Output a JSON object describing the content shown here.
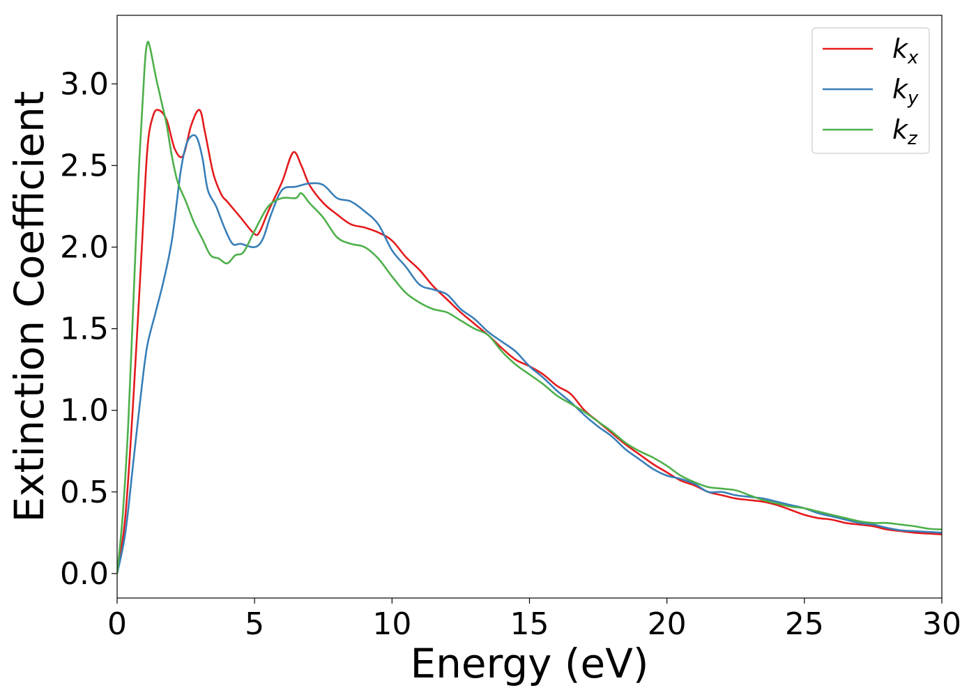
{
  "chart_data": {
    "type": "line",
    "title": "",
    "xlabel": "Energy (eV)",
    "ylabel": "Extinction Coefficient",
    "xlim": [
      0,
      30
    ],
    "ylim": [
      -0.15,
      3.42
    ],
    "xticks": [
      0,
      5,
      10,
      15,
      20,
      25,
      30
    ],
    "xtick_labels": [
      "0",
      "5",
      "10",
      "15",
      "20",
      "25",
      "30"
    ],
    "yticks": [
      0.0,
      0.5,
      1.0,
      1.5,
      2.0,
      2.5,
      3.0
    ],
    "ytick_labels": [
      "0.0",
      "0.5",
      "1.0",
      "1.5",
      "2.0",
      "2.5",
      "3.0"
    ],
    "grid": false,
    "legend": {
      "position": "top-right"
    },
    "series": [
      {
        "name": "k",
        "subscript": "x",
        "color": "#e41a1c",
        "x": [
          0,
          0.3,
          0.6,
          0.9,
          1.1,
          1.3,
          1.5,
          1.8,
          2.1,
          2.4,
          2.7,
          3.0,
          3.2,
          3.5,
          3.8,
          4.0,
          4.5,
          5.0,
          5.2,
          5.5,
          6.0,
          6.4,
          6.7,
          7.0,
          7.5,
          8.0,
          8.5,
          9.0,
          9.5,
          10.0,
          10.5,
          11.0,
          11.5,
          12.0,
          12.5,
          13.0,
          13.5,
          14.0,
          14.5,
          15.0,
          15.5,
          16.0,
          16.5,
          17.0,
          17.5,
          18.0,
          18.5,
          19.0,
          19.5,
          20.0,
          20.5,
          21.0,
          21.5,
          22.0,
          22.5,
          23.0,
          23.5,
          24.0,
          24.5,
          25.0,
          25.5,
          26.0,
          26.5,
          27.0,
          27.5,
          28.0,
          28.5,
          29.0,
          29.5,
          30.0
        ],
        "y": [
          0.0,
          0.35,
          1.1,
          2.0,
          2.6,
          2.8,
          2.84,
          2.78,
          2.6,
          2.56,
          2.75,
          2.84,
          2.7,
          2.45,
          2.32,
          2.28,
          2.18,
          2.08,
          2.1,
          2.22,
          2.4,
          2.58,
          2.5,
          2.38,
          2.27,
          2.2,
          2.14,
          2.12,
          2.09,
          2.04,
          1.94,
          1.86,
          1.76,
          1.68,
          1.6,
          1.53,
          1.46,
          1.38,
          1.31,
          1.27,
          1.22,
          1.15,
          1.1,
          1.0,
          0.93,
          0.86,
          0.79,
          0.73,
          0.67,
          0.62,
          0.57,
          0.54,
          0.5,
          0.48,
          0.46,
          0.45,
          0.44,
          0.42,
          0.39,
          0.36,
          0.34,
          0.33,
          0.31,
          0.3,
          0.29,
          0.27,
          0.26,
          0.25,
          0.245,
          0.24
        ]
      },
      {
        "name": "k",
        "subscript": "y",
        "color": "#377eb8",
        "x": [
          0,
          0.3,
          0.6,
          0.9,
          1.1,
          1.4,
          1.7,
          2.0,
          2.3,
          2.5,
          2.7,
          2.9,
          3.1,
          3.3,
          3.6,
          3.9,
          4.2,
          4.5,
          5.0,
          5.3,
          5.6,
          6.0,
          6.5,
          7.0,
          7.5,
          8.0,
          8.5,
          9.0,
          9.5,
          10.0,
          10.5,
          11.0,
          11.5,
          12.0,
          12.5,
          13.0,
          13.5,
          14.0,
          14.5,
          15.0,
          15.5,
          16.0,
          16.5,
          17.0,
          17.5,
          18.0,
          18.5,
          19.0,
          19.5,
          20.0,
          20.5,
          21.0,
          21.5,
          22.0,
          22.5,
          23.0,
          23.5,
          24.0,
          24.5,
          25.0,
          25.5,
          26.0,
          26.5,
          27.0,
          27.5,
          28.0,
          28.5,
          29.0,
          29.5,
          30.0
        ],
        "y": [
          0.0,
          0.25,
          0.7,
          1.15,
          1.4,
          1.6,
          1.8,
          2.05,
          2.45,
          2.62,
          2.68,
          2.67,
          2.55,
          2.35,
          2.25,
          2.12,
          2.02,
          2.02,
          2.0,
          2.05,
          2.2,
          2.35,
          2.37,
          2.39,
          2.38,
          2.3,
          2.28,
          2.22,
          2.14,
          1.98,
          1.88,
          1.77,
          1.74,
          1.71,
          1.62,
          1.56,
          1.48,
          1.42,
          1.36,
          1.27,
          1.2,
          1.12,
          1.05,
          0.97,
          0.9,
          0.84,
          0.76,
          0.7,
          0.64,
          0.6,
          0.58,
          0.55,
          0.5,
          0.5,
          0.48,
          0.47,
          0.46,
          0.44,
          0.42,
          0.4,
          0.37,
          0.35,
          0.33,
          0.31,
          0.3,
          0.28,
          0.265,
          0.26,
          0.255,
          0.25
        ]
      },
      {
        "name": "k",
        "subscript": "z",
        "color": "#4daf4a",
        "x": [
          0,
          0.2,
          0.4,
          0.6,
          0.8,
          1.0,
          1.1,
          1.2,
          1.4,
          1.6,
          1.8,
          2.0,
          2.2,
          2.5,
          2.8,
          3.1,
          3.4,
          3.7,
          4.0,
          4.3,
          4.6,
          5.0,
          5.5,
          6.0,
          6.5,
          6.7,
          7.0,
          7.5,
          8.0,
          8.5,
          9.0,
          9.5,
          10.0,
          10.5,
          11.0,
          11.5,
          12.0,
          12.5,
          13.0,
          13.5,
          14.0,
          14.5,
          15.0,
          15.5,
          16.0,
          16.5,
          17.0,
          17.5,
          18.0,
          18.5,
          19.0,
          19.5,
          20.0,
          20.5,
          21.0,
          21.5,
          22.0,
          22.5,
          23.0,
          23.5,
          24.0,
          24.5,
          25.0,
          25.5,
          26.0,
          26.5,
          27.0,
          27.5,
          28.0,
          28.5,
          29.0,
          29.5,
          30.0
        ],
        "y": [
          0.0,
          0.35,
          0.9,
          1.7,
          2.5,
          3.1,
          3.25,
          3.22,
          3.05,
          2.9,
          2.75,
          2.55,
          2.4,
          2.28,
          2.15,
          2.05,
          1.95,
          1.93,
          1.9,
          1.95,
          1.97,
          2.1,
          2.25,
          2.3,
          2.3,
          2.33,
          2.27,
          2.18,
          2.06,
          2.02,
          2.0,
          1.93,
          1.82,
          1.72,
          1.66,
          1.62,
          1.6,
          1.55,
          1.5,
          1.46,
          1.36,
          1.28,
          1.22,
          1.16,
          1.09,
          1.04,
          0.99,
          0.93,
          0.87,
          0.8,
          0.75,
          0.71,
          0.66,
          0.6,
          0.56,
          0.53,
          0.52,
          0.51,
          0.48,
          0.45,
          0.43,
          0.41,
          0.4,
          0.38,
          0.36,
          0.34,
          0.32,
          0.31,
          0.31,
          0.3,
          0.29,
          0.275,
          0.27
        ]
      }
    ]
  }
}
